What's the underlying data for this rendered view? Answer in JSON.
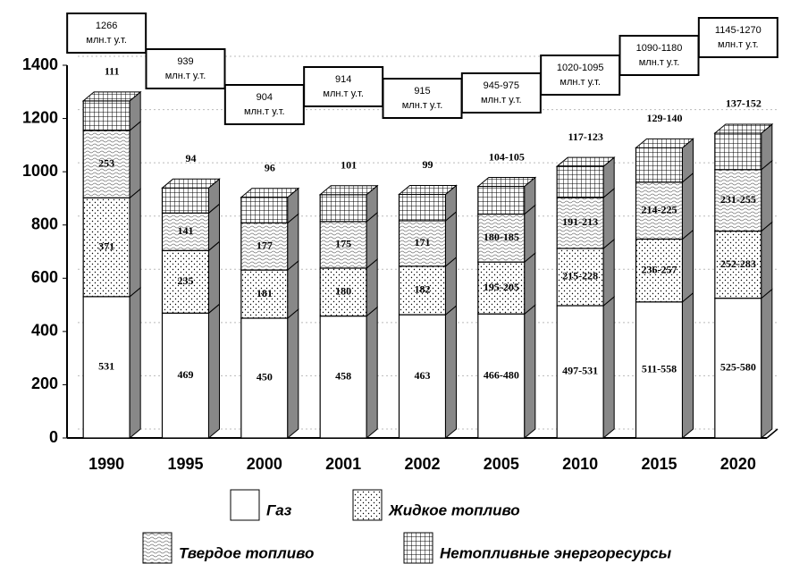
{
  "chart_data": {
    "type": "bar3d_stacked",
    "categories": [
      "1990",
      "1995",
      "2000",
      "2001",
      "2002",
      "2005",
      "2010",
      "2015",
      "2020"
    ],
    "series": [
      {
        "name": "Газ",
        "color": "#ffffff",
        "pattern": "none",
        "values": [
          531,
          469,
          450,
          458,
          463,
          466,
          497,
          511,
          525
        ],
        "value_labels": [
          "531",
          "469",
          "450",
          "458",
          "463",
          "466-480",
          "497-531",
          "511-558",
          "525-580"
        ]
      },
      {
        "name": "Жидкое топливо",
        "color": "#ffffff",
        "pattern": "dots",
        "values": [
          371,
          235,
          181,
          180,
          182,
          195,
          215,
          236,
          252
        ],
        "value_labels": [
          "371",
          "235",
          "181",
          "180",
          "182",
          "195-205",
          "215-228",
          "236-257",
          "252-283"
        ]
      },
      {
        "name": "Твердое топливо",
        "color": "#ffffff",
        "pattern": "waves",
        "values": [
          253,
          141,
          177,
          175,
          171,
          180,
          191,
          214,
          231
        ],
        "value_labels": [
          "253",
          "141",
          "177",
          "175",
          "171",
          "180-185",
          "191-213",
          "214-225",
          "231-255"
        ]
      },
      {
        "name": "Нетопливные энергоресурсы",
        "color": "#ffffff",
        "pattern": "grid",
        "values": [
          111,
          94,
          96,
          101,
          99,
          104,
          117,
          129,
          137
        ],
        "value_labels": [
          "111",
          "94",
          "96",
          "101",
          "99",
          "104-105",
          "117-123",
          "129-140",
          "137-152"
        ]
      }
    ],
    "total_labels": [
      "1266",
      "939",
      "904",
      "914",
      "915",
      "945-975",
      "1020-1095",
      "1090-1180",
      "1145-1270"
    ],
    "total_unit": "млн.т у.т.",
    "ylim": [
      0,
      1400
    ],
    "yticks": [
      0,
      200,
      400,
      600,
      800,
      1000,
      1200,
      1400
    ],
    "grid": true
  }
}
